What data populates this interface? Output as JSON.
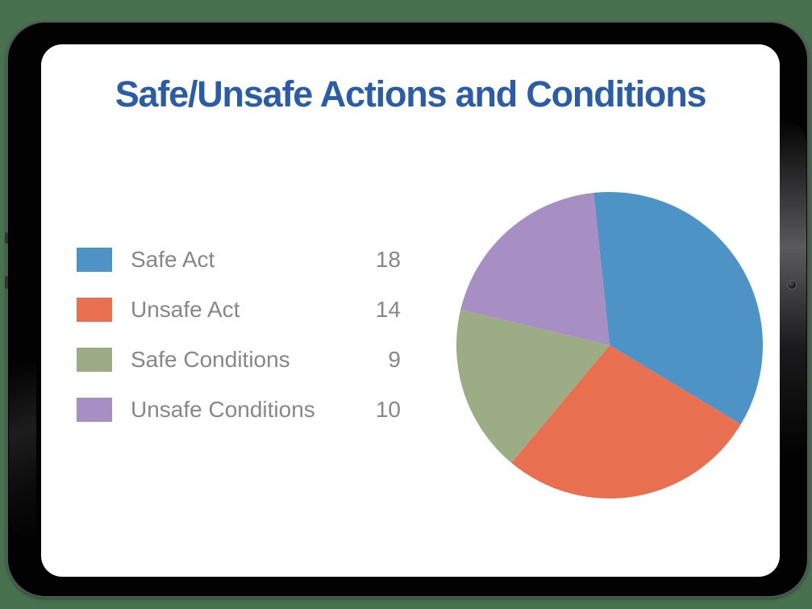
{
  "title": {
    "text": "Safe/Unsafe Actions and Conditions",
    "color": "#2B5CA8"
  },
  "legend": {
    "items": [
      {
        "label": "Safe Act",
        "value": "18",
        "color": "#4E93C6"
      },
      {
        "label": "Unsafe Act",
        "value": "14",
        "color": "#E96F51"
      },
      {
        "label": "Safe Conditions",
        "value": "9",
        "color": "#9CAC85"
      },
      {
        "label": "Unsafe Conditions",
        "value": "10",
        "color": "#A78FC4"
      }
    ]
  },
  "chart_data": {
    "type": "pie",
    "title": "Safe/Unsafe Actions and Conditions",
    "categories": [
      "Safe Act",
      "Unsafe Act",
      "Safe Conditions",
      "Unsafe Conditions"
    ],
    "values": [
      18,
      14,
      9,
      10
    ],
    "colors": [
      "#4E93C6",
      "#E96F51",
      "#9CAC85",
      "#A78FC4"
    ],
    "total": 51,
    "start_angle_deg": -6,
    "direction": "clockwise",
    "legend_position": "left"
  },
  "colors": {
    "background": "#487150",
    "bezel": "#020202",
    "bezel_outline": "#56565a",
    "screen": "#FFFFFF",
    "legend_text": "#878787"
  }
}
